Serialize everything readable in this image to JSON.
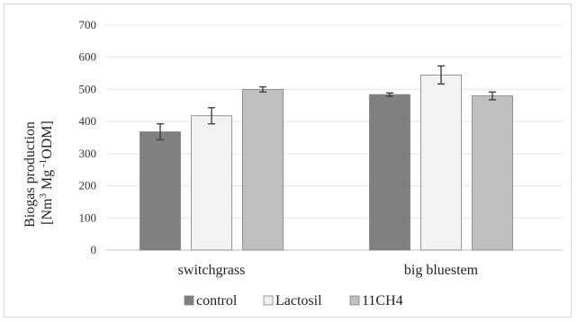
{
  "chart_data": {
    "type": "bar",
    "categories": [
      "switchgrass",
      "big bluestem"
    ],
    "ylabel_line1": "Biogas production",
    "ylabel_line2_pre": "[Nm",
    "ylabel_line2_sup1": "3",
    "ylabel_line2_mid": " Mg",
    "ylabel_line2_sup2": " -1",
    "ylabel_line2_post": "ODM]",
    "ylim": [
      0,
      700
    ],
    "yticks": [
      0,
      100,
      200,
      300,
      400,
      500,
      600,
      700
    ],
    "grid": true,
    "legend_position": "bottom",
    "series": [
      {
        "name": "control",
        "values": [
          368,
          484
        ],
        "errors": [
          25,
          5
        ],
        "color": "#808080"
      },
      {
        "name": "Lactosil",
        "values": [
          418,
          545
        ],
        "errors": [
          25,
          28
        ],
        "color": "#f2f2f2"
      },
      {
        "name": "11CH4",
        "values": [
          500,
          480
        ],
        "errors": [
          8,
          12
        ],
        "color": "#bfbfbf"
      }
    ]
  }
}
